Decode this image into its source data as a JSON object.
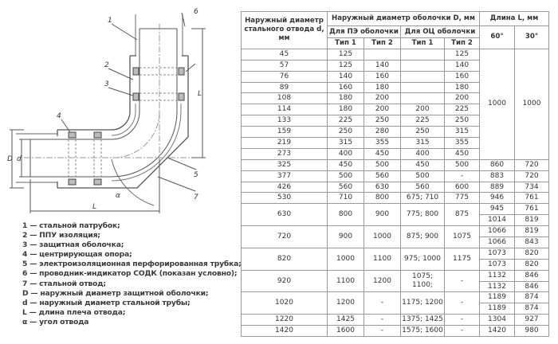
{
  "drawing": {
    "callouts": [
      "1",
      "2",
      "3",
      "4",
      "5",
      "6",
      "7"
    ],
    "dimensions": {
      "outer_diameter": "D",
      "inner_diameter": "d",
      "length": "L",
      "angle": "α"
    }
  },
  "legend": [
    "1 — стальной патрубок;",
    "2 — ППУ изоляция;",
    "3 — защитная оболочка;",
    "4 — центрирующая опора;",
    "5 — электроизоляционная перфорированная трубка;",
    "6 — проводник-индикатор СОДК (показан условно);",
    "7 — стальной отвод;",
    "D — наружный диаметр защитной оболочки;",
    "d — наружный диаметр стальной трубы;",
    "L — длина плеча отвода;",
    "α — угол отвода"
  ],
  "table": {
    "headers": {
      "steel_d": "Наружный диаметр стального отвода d, мм",
      "shell_D": "Наружный диаметр оболочки D, мм",
      "length": "Длина L, мм",
      "pe": "Для ПЭ оболочки",
      "oc": "Для ОЦ оболочки",
      "type1": "Тип 1",
      "type2": "Тип 2",
      "angle60": "60°",
      "angle30": "30°"
    },
    "group_length": {
      "l60": "1000",
      "l30": "1000"
    },
    "rows": [
      {
        "d": "45",
        "pe1": "125",
        "pe2": "",
        "oc1": "",
        "oc2": "125"
      },
      {
        "d": "57",
        "pe1": "125",
        "pe2": "140",
        "oc1": "",
        "oc2": "140"
      },
      {
        "d": "76",
        "pe1": "140",
        "pe2": "160",
        "oc1": "",
        "oc2": "160"
      },
      {
        "d": "89",
        "pe1": "160",
        "pe2": "180",
        "oc1": "",
        "oc2": "180"
      },
      {
        "d": "108",
        "pe1": "180",
        "pe2": "200",
        "oc1": "",
        "oc2": "200"
      },
      {
        "d": "114",
        "pe1": "180",
        "pe2": "200",
        "oc1": "200",
        "oc2": "225"
      },
      {
        "d": "133",
        "pe1": "225",
        "pe2": "250",
        "oc1": "225",
        "oc2": "250"
      },
      {
        "d": "159",
        "pe1": "250",
        "pe2": "280",
        "oc1": "250",
        "oc2": "315"
      },
      {
        "d": "219",
        "pe1": "315",
        "pe2": "355",
        "oc1": "315",
        "oc2": "355"
      },
      {
        "d": "273",
        "pe1": "400",
        "pe2": "450",
        "oc1": "400",
        "oc2": "450"
      },
      {
        "d": "325",
        "pe1": "450",
        "pe2": "500",
        "oc1": "450",
        "oc2": "500",
        "len": [
          [
            "860",
            "720"
          ]
        ]
      },
      {
        "d": "377",
        "pe1": "500",
        "pe2": "560",
        "oc1": "500",
        "oc2": "-",
        "len": [
          [
            "883",
            "720"
          ]
        ]
      },
      {
        "d": "426",
        "pe1": "560",
        "pe2": "630",
        "oc1": "560",
        "oc2": "600",
        "len": [
          [
            "889",
            "734"
          ]
        ]
      },
      {
        "d": "530",
        "pe1": "710",
        "pe2": "800",
        "oc1": "675; 710",
        "oc2": "775",
        "len": [
          [
            "946",
            "761"
          ]
        ]
      },
      {
        "d": "630",
        "pe1": "800",
        "pe2": "900",
        "oc1": "775; 800",
        "oc2": "875",
        "len": [
          [
            "945",
            "761"
          ],
          [
            "1014",
            "819"
          ]
        ]
      },
      {
        "d": "720",
        "pe1": "900",
        "pe2": "1000",
        "oc1": "875; 900",
        "oc2": "1075",
        "len": [
          [
            "1066",
            "819"
          ],
          [
            "1066",
            "843"
          ]
        ]
      },
      {
        "d": "820",
        "pe1": "1000",
        "pe2": "1100",
        "oc1": "975; 1000",
        "oc2": "1175",
        "len": [
          [
            "1073",
            "820"
          ],
          [
            "1073",
            "820"
          ]
        ]
      },
      {
        "d": "920",
        "pe1": "1100",
        "pe2": "1200",
        "oc1": "1075;\n1100;",
        "oc2": "-",
        "len": [
          [
            "1132",
            "846"
          ],
          [
            "1132",
            "846"
          ]
        ]
      },
      {
        "d": "1020",
        "pe1": "1200",
        "pe2": "-",
        "oc1": "1175; 1200",
        "oc2": "-",
        "len": [
          [
            "1189",
            "874"
          ],
          [
            "1189",
            "874"
          ]
        ]
      },
      {
        "d": "1220",
        "pe1": "1425",
        "pe2": "-",
        "oc1": "1375; 1425",
        "oc2": "-",
        "len": [
          [
            "1304",
            "927"
          ]
        ]
      },
      {
        "d": "1420",
        "pe1": "1600",
        "pe2": "-",
        "oc1": "1575; 1600",
        "oc2": "-",
        "len": [
          [
            "1420",
            "980"
          ]
        ]
      }
    ]
  }
}
